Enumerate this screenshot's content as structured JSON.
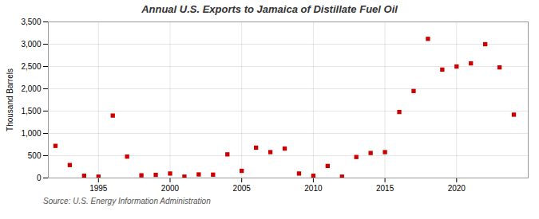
{
  "chart_data": {
    "type": "scatter",
    "title": "Annual U.S. Exports to Jamaica of Distillate Fuel Oil",
    "ylabel": "Thousand Barrels",
    "source": "Source: U.S. Energy Information Administration",
    "x": [
      1992,
      1993,
      1994,
      1995,
      1996,
      1997,
      1998,
      1999,
      2000,
      2001,
      2002,
      2003,
      2004,
      2005,
      2006,
      2007,
      2008,
      2009,
      2010,
      2011,
      2012,
      2013,
      2014,
      2015,
      2016,
      2017,
      2018,
      2019,
      2020,
      2021,
      2022,
      2023,
      2024
    ],
    "values": [
      720,
      290,
      50,
      30,
      1400,
      480,
      60,
      70,
      100,
      30,
      80,
      75,
      530,
      160,
      680,
      580,
      660,
      100,
      50,
      270,
      30,
      470,
      560,
      580,
      1480,
      1950,
      3120,
      2430,
      2500,
      2570,
      3000,
      2480,
      1420
    ],
    "color": "#cc0000",
    "marker": "square",
    "xlim": [
      1991.5,
      2025
    ],
    "xticks": [
      1995,
      2000,
      2005,
      2010,
      2015,
      2020
    ],
    "ylim": [
      0,
      3500
    ],
    "yticks": [
      0,
      500,
      {
        "value": 1000,
        "label": "1,000"
      },
      {
        "value": 1500,
        "label": "1,500"
      },
      {
        "value": 2000,
        "label": "2,000"
      },
      {
        "value": 2500,
        "label": "2,500"
      },
      {
        "value": 3000,
        "label": "3,000"
      },
      {
        "value": 3500,
        "label": "3,500"
      }
    ],
    "grid": true
  }
}
